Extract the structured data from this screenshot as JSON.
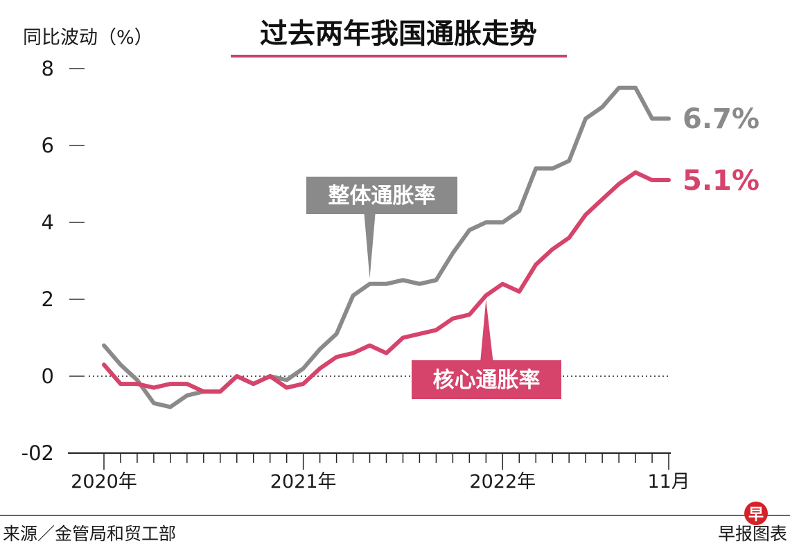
{
  "chart_data": {
    "type": "line",
    "title": "过去两年我国通胀走势",
    "ylabel": "同比波动（%）",
    "ylim": [
      -2,
      8
    ],
    "yticks": [
      -2,
      0,
      2,
      4,
      6,
      8
    ],
    "ytick_labels": [
      "-02",
      "0",
      "2",
      "4",
      "6",
      "8"
    ],
    "x_start": "2020-01",
    "x_end": "2022-11",
    "x_tick_labels": [
      {
        "label": "2020年",
        "month": "2020-01"
      },
      {
        "label": "2021年",
        "month": "2021-01"
      },
      {
        "label": "2022年",
        "month": "2022-01"
      },
      {
        "label": "11月",
        "month": "2022-11"
      }
    ],
    "zero_line": "dotted",
    "series": [
      {
        "name": "整体通胀率",
        "color": "#8a8a8a",
        "end_label": "6.7%",
        "values": [
          0.8,
          0.3,
          -0.1,
          -0.7,
          -0.8,
          -0.5,
          -0.4,
          -0.4,
          0.0,
          -0.2,
          0.0,
          -0.1,
          0.2,
          0.7,
          1.1,
          2.1,
          2.4,
          2.4,
          2.5,
          2.4,
          2.5,
          3.2,
          3.8,
          4.0,
          4.0,
          4.3,
          5.4,
          5.4,
          5.6,
          6.7,
          7.0,
          7.5,
          7.5,
          6.7,
          6.7
        ]
      },
      {
        "name": "核心通胀率",
        "color": "#d6436b",
        "end_label": "5.1%",
        "values": [
          0.3,
          -0.2,
          -0.2,
          -0.3,
          -0.2,
          -0.2,
          -0.4,
          -0.4,
          0.0,
          -0.2,
          0.0,
          -0.3,
          -0.2,
          0.2,
          0.5,
          0.6,
          0.8,
          0.6,
          1.0,
          1.1,
          1.2,
          1.5,
          1.6,
          2.1,
          2.4,
          2.2,
          2.9,
          3.3,
          3.6,
          4.2,
          4.6,
          5.0,
          5.3,
          5.1,
          5.1
        ]
      }
    ],
    "callouts": [
      {
        "text": "整体通胀率",
        "series": "整体通胀率",
        "bg": "#8a8a8a"
      },
      {
        "text": "核心通胀率",
        "series": "核心通胀率",
        "bg": "#d6436b"
      }
    ]
  },
  "footer": {
    "source": "来源／金管局和贸工部",
    "brand": "早报图表",
    "logo_char": "早",
    "logo_color": "#d42229"
  },
  "colors": {
    "title_underline": "#c7436b"
  }
}
